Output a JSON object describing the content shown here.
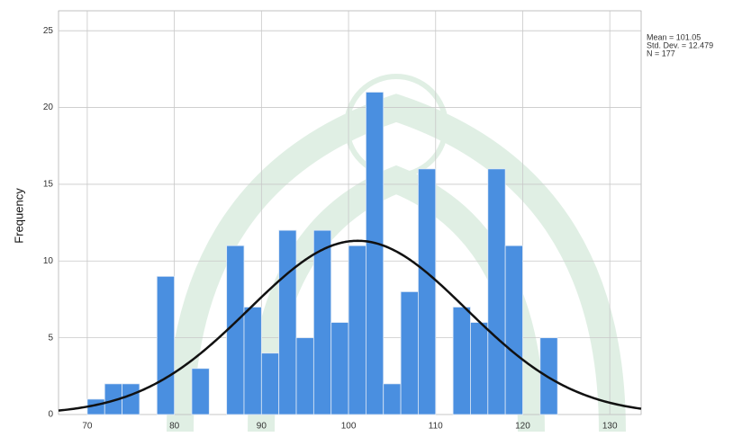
{
  "chart_data": {
    "type": "histogram",
    "y_label": "Frequency",
    "bins": [
      70,
      72,
      74,
      76,
      78,
      80,
      82,
      84,
      86,
      88,
      90,
      92,
      94,
      96,
      98,
      100,
      102,
      104,
      106,
      108,
      110,
      112,
      114,
      116,
      118,
      120,
      122,
      124
    ],
    "values": [
      1,
      2,
      2,
      0,
      9,
      0,
      3,
      0,
      11,
      7,
      4,
      12,
      5,
      12,
      6,
      11,
      21,
      2,
      8,
      16,
      0,
      7,
      6,
      16,
      11,
      0,
      5
    ],
    "color": "#4a8fe0",
    "curve_color": "#111111",
    "mean": 101.05,
    "std_dev": 12.479,
    "n": 177,
    "stats_labels": [
      "Mean = 101.05",
      "Std. Dev. = 12.479",
      "N = 177"
    ],
    "xlim": [
      66.7,
      133.6
    ],
    "ylim": [
      0,
      26.3
    ],
    "xticks": [
      70,
      80,
      90,
      100,
      110,
      120,
      130
    ],
    "yticks": [
      0,
      5,
      10,
      15,
      20,
      25
    ],
    "grid": true
  }
}
